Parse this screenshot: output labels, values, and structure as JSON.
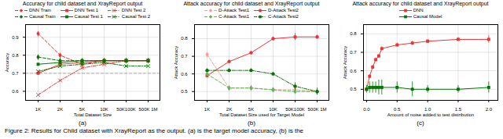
{
  "caption": "Figure 2: Results for Child dataset with XrayReport as the output. (a) is the target model accuracy, (b) is the",
  "chart_data": [
    {
      "type": "line",
      "title": "Accuracy for child dataset and XrayReport output",
      "xlabel": "Total Dataset Size",
      "ylabel": "Accuracy",
      "categories": [
        "1K",
        "2K",
        "5K",
        "10K",
        "50K100K",
        "500K 1M"
      ],
      "series": [
        {
          "name": "DNN Train",
          "color": "#EE3333",
          "marker": "diamond",
          "line_style": "dashed",
          "values": [
            0.92,
            0.8,
            0.75,
            0.77,
            0.77,
            0.77
          ]
        },
        {
          "name": "DNN Test 1",
          "color": "#EE3333",
          "marker": "square",
          "line_style": "solid",
          "values": [
            0.7,
            0.75,
            0.76,
            0.77,
            0.77,
            0.77
          ]
        },
        {
          "name": "DNN Test 2",
          "color": "#EE3333",
          "marker": "x",
          "line_style": "dashdot",
          "values": [
            0.58,
            0.66,
            0.73,
            0.75,
            0.77,
            0.77
          ]
        },
        {
          "name": "Causal Train",
          "color": "#007700",
          "marker": "diamond",
          "line_style": "dashed",
          "values": [
            0.79,
            0.77,
            0.77,
            0.77,
            0.77,
            0.77
          ]
        },
        {
          "name": "Causal Test 1",
          "color": "#007700",
          "marker": "square",
          "line_style": "solid",
          "values": [
            0.75,
            0.76,
            0.77,
            0.77,
            0.77,
            0.77
          ]
        },
        {
          "name": "Causal Test 2",
          "color": "#007700",
          "marker": "x",
          "line_style": "dashdot",
          "values": [
            0.71,
            0.74,
            0.75,
            0.76,
            0.74,
            0.74
          ]
        }
      ],
      "ylim": [
        0.55,
        0.97
      ],
      "yticks": [
        0.6,
        0.7,
        0.8,
        0.9
      ],
      "annotations": [
        {
          "type": "hline",
          "y": 0.7,
          "color": "gray",
          "line_style": "dashed"
        },
        {
          "type": "panel_label",
          "text": "(a)"
        }
      ],
      "grid": true,
      "legend": "top"
    },
    {
      "type": "line",
      "title": "Attack accuracy for child dataset and XrayReport output",
      "xlabel": "Total Dataset Size used for Target Model",
      "ylabel": "Attack Accuracy",
      "categories": [
        "1K",
        "2K",
        "5K",
        "10K",
        "50K100K",
        "500K 1M"
      ],
      "series": [
        {
          "name": "D-Attack Test1",
          "color": "#FF9999",
          "marker": "diamond",
          "line_style": "dashed",
          "values": [
            0.71,
            0.52,
            0.52,
            0.51,
            0.51,
            0.5
          ],
          "errors": [
            0.01,
            0.01,
            0.01,
            0.01,
            0.01,
            0.01
          ]
        },
        {
          "name": "D-Attack Test2",
          "color": "#EE3333",
          "marker": "circle",
          "line_style": "solid",
          "values": [
            0.59,
            0.67,
            0.72,
            0.8,
            0.81,
            0.81
          ],
          "errors": [
            0.01,
            0.01,
            0.01,
            0.01,
            0.02,
            0.01
          ]
        },
        {
          "name": "C-Attack Test1",
          "color": "#55BB55",
          "marker": "diamond",
          "line_style": "dashed",
          "values": [
            0.6,
            0.52,
            0.52,
            0.51,
            0.5,
            0.5
          ],
          "errors": [
            0.01,
            0.01,
            0.01,
            0.01,
            0.01,
            0.01
          ]
        },
        {
          "name": "C-Attack Test2",
          "color": "#007700",
          "marker": "circle",
          "line_style": "dashdot",
          "values": [
            0.62,
            0.62,
            0.62,
            0.6,
            0.53,
            0.5
          ],
          "errors": [
            0.01,
            0.01,
            0.01,
            0.01,
            0.02,
            0.02
          ]
        }
      ],
      "ylim": [
        0.45,
        0.88
      ],
      "yticks": [
        0.5,
        0.6,
        0.7,
        0.8
      ],
      "annotations": [
        {
          "type": "panel_label",
          "text": "(b)"
        }
      ],
      "grid": true,
      "legend": "top"
    },
    {
      "type": "line",
      "title": "Attack accuracy for child dataset and XrayReport output",
      "xlabel": "Amount of noise added to test distribution",
      "ylabel": "Attack Accuracy",
      "x": [
        0.0,
        0.05,
        0.1,
        0.15,
        0.2,
        0.25,
        0.5,
        0.75,
        1.0,
        1.5,
        2.0
      ],
      "series": [
        {
          "name": "DNN",
          "color": "#EE3333",
          "marker": "square",
          "line_style": "solid",
          "values": [
            0.5,
            0.57,
            0.62,
            0.66,
            0.68,
            0.72,
            0.74,
            0.75,
            0.76,
            0.77,
            0.77
          ],
          "errors": [
            0.01,
            0.01,
            0.01,
            0.01,
            0.01,
            0.01,
            0.01,
            0.01,
            0.01,
            0.01,
            0.02
          ]
        },
        {
          "name": "Causal Model",
          "color": "#007700",
          "marker": "square",
          "line_style": "solid",
          "values": [
            0.5,
            0.51,
            0.51,
            0.51,
            0.51,
            0.51,
            0.51,
            0.5,
            0.5,
            0.5,
            0.51
          ],
          "errors": [
            0.02,
            0.03,
            0.03,
            0.03,
            0.04,
            0.04,
            0.03,
            0.04,
            0.02,
            0.02,
            0.03
          ]
        }
      ],
      "xlim": [
        -0.05,
        2.15
      ],
      "xticks": [
        {
          "value": 0.0,
          "label": "0.0"
        },
        0.5,
        {
          "value": 1.0,
          "label": "1.0"
        },
        1.5,
        {
          "value": 2.0,
          "label": "2.0"
        }
      ],
      "ylim": [
        0.44,
        0.85
      ],
      "yticks": [
        0.5,
        0.6,
        0.7,
        0.8
      ],
      "annotations": [
        {
          "type": "panel_label",
          "text": "(c)"
        }
      ],
      "grid": true,
      "legend": "top"
    }
  ]
}
